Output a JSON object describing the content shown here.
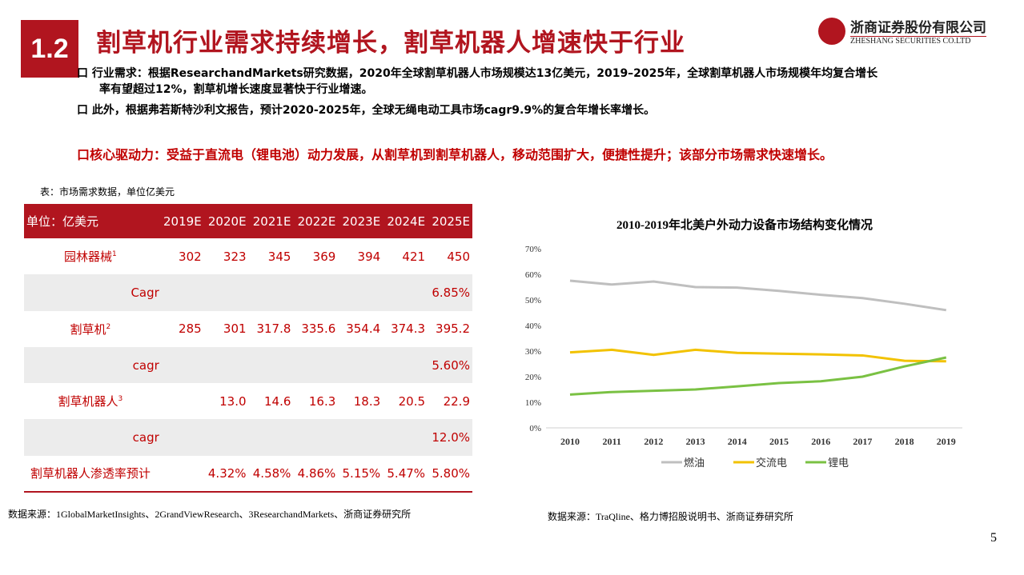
{
  "header": {
    "section": "1.2",
    "title": "割草机行业需求持续增长，割草机器人增速快于行业",
    "logo_cn": "浙商证券股份有限公司",
    "logo_en": "ZHESHANG SECURITIES CO.LTD"
  },
  "bullets": [
    "行业需求：根据ResearchandMarkets研究数据，2020年全球割草机器人市场规模达13亿美元，2019–2025年，全球割草机器人市场规模年均复合增长",
    "率有望超过12%，割草机增长速度显著快于行业增速。",
    "此外，根据弗若斯特沙利文报告，预计2020-2025年，全球无绳电动工具市场cagr9.9%的复合年增长率增长。"
  ],
  "key_point": "核心驱动力：受益于直流电（锂电池）动力发展，从割草机到割草机器人，移动范围扩大，便捷性提升；该部分市场需求快速增长。",
  "bullet_marker": "口",
  "table": {
    "caption": "表：市场需求数据，单位亿美元",
    "headers": [
      "单位：亿美元",
      "2019E",
      "2020E",
      "2021E",
      "2022E",
      "2023E",
      "2024E",
      "2025E"
    ],
    "rows": [
      {
        "label": "园林器械",
        "sup": "1",
        "cells": [
          "302",
          "323",
          "345",
          "369",
          "394",
          "421",
          "450"
        ]
      },
      {
        "label": "Cagr",
        "cells": [
          "",
          "",
          "",
          "",
          "",
          "",
          "6.85%"
        ],
        "cagr": true
      },
      {
        "label": "割草机",
        "sup": "2",
        "cells": [
          "285",
          "301",
          "317.8",
          "335.6",
          "354.4",
          "374.3",
          "395.2"
        ]
      },
      {
        "label": "cagr",
        "cells": [
          "",
          "",
          "",
          "",
          "",
          "",
          "5.60%"
        ],
        "cagr": true
      },
      {
        "label": "割草机器人",
        "sup": "3",
        "cells": [
          "",
          "13.0",
          "14.6",
          "16.3",
          "18.3",
          "20.5",
          "22.9"
        ]
      },
      {
        "label": "cagr",
        "cells": [
          "",
          "",
          "",
          "",
          "",
          "",
          "12.0%"
        ],
        "cagr": true
      },
      {
        "label": "割草机器人渗透率预计",
        "cells": [
          "",
          "4.32%",
          "4.58%",
          "4.86%",
          "5.15%",
          "5.47%",
          "5.80%"
        ]
      }
    ]
  },
  "source_left": "数据来源：1GlobalMarketInsights、2GrandViewResearch、3ResearchandMarkets、浙商证券研究所",
  "source_right": "数据来源：TraQline、格力博招股说明书、浙商证券研究所",
  "page_number": "5",
  "chart_data": {
    "type": "line",
    "title": "2010-2019年北美户外动力设备市场结构变化情况",
    "x": [
      "2010",
      "2011",
      "2012",
      "2013",
      "2014",
      "2015",
      "2016",
      "2017",
      "2018",
      "2019"
    ],
    "ylim": [
      0,
      70
    ],
    "yticks": [
      "0%",
      "10%",
      "20%",
      "30%",
      "40%",
      "50%",
      "60%",
      "70%"
    ],
    "grid": false,
    "legend": "bottom",
    "series": [
      {
        "name": "燃油",
        "color": "#bfbfbf",
        "values": [
          57.5,
          56,
          57.2,
          55,
          54.8,
          53.5,
          52,
          50.7,
          48.5,
          46
        ]
      },
      {
        "name": "交流电",
        "color": "#f2c200",
        "values": [
          29.5,
          30.5,
          28.5,
          30.5,
          29.3,
          29,
          28.7,
          28.3,
          26.2,
          26
        ]
      },
      {
        "name": "锂电",
        "color": "#7ac143",
        "values": [
          13,
          14,
          14.5,
          15,
          16.2,
          17.5,
          18.2,
          20,
          24,
          27.5
        ]
      }
    ]
  }
}
